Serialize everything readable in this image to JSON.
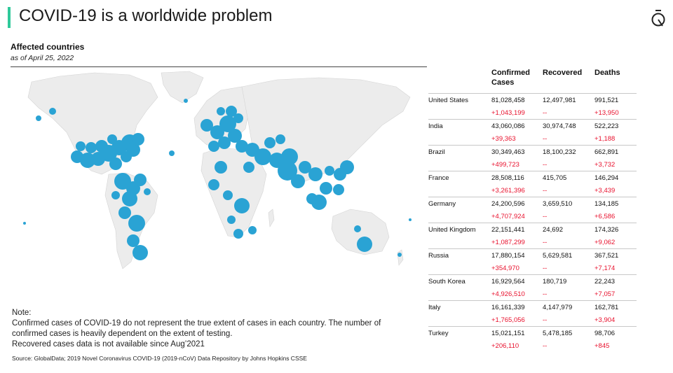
{
  "header": {
    "title": "COVID-19 is a worldwide problem"
  },
  "section": {
    "subtitle": "Affected countries",
    "as_of": "as of April 25, 2022"
  },
  "colors": {
    "accent": "#2fc99a",
    "bubble": "#2aa3d4",
    "increase": "#e8112d"
  },
  "table": {
    "columns": [
      "",
      "Confirmed Cases",
      "Recovered",
      "Deaths"
    ],
    "rows": [
      {
        "country": "United States",
        "confirmed": "81,028,458",
        "recovered": "12,497,981",
        "deaths": "991,521",
        "confirmed_change": "+1,043,199",
        "recovered_change": "--",
        "deaths_change": "+13,950"
      },
      {
        "country": "India",
        "confirmed": "43,060,086",
        "recovered": "30,974,748",
        "deaths": "522,223",
        "confirmed_change": "+39,363",
        "recovered_change": "--",
        "deaths_change": "+1,188"
      },
      {
        "country": "Brazil",
        "confirmed": "30,349,463",
        "recovered": "18,100,232",
        "deaths": "662,891",
        "confirmed_change": "+499,723",
        "recovered_change": "--",
        "deaths_change": "+3,732"
      },
      {
        "country": "France",
        "confirmed": "28,508,116",
        "recovered": "415,705",
        "deaths": "146,294",
        "confirmed_change": "+3,261,396",
        "recovered_change": "--",
        "deaths_change": "+3,439"
      },
      {
        "country": "Germany",
        "confirmed": "24,200,596",
        "recovered": "3,659,510",
        "deaths": "134,185",
        "confirmed_change": "+4,707,924",
        "recovered_change": "--",
        "deaths_change": "+6,586"
      },
      {
        "country": "United Kingdom",
        "confirmed": "22,151,441",
        "recovered": "24,692",
        "deaths": "174,326",
        "confirmed_change": "+1,087,299",
        "recovered_change": "--",
        "deaths_change": "+9,062"
      },
      {
        "country": "Russia",
        "confirmed": "17,880,154",
        "recovered": "5,629,581",
        "deaths": "367,521",
        "confirmed_change": "+354,970",
        "recovered_change": "--",
        "deaths_change": "+7,174"
      },
      {
        "country": "South Korea",
        "confirmed": "16,929,564",
        "recovered": "180,719",
        "deaths": "22,243",
        "confirmed_change": "+4,926,510",
        "recovered_change": "--",
        "deaths_change": "+7,057"
      },
      {
        "country": "Italy",
        "confirmed": "16,161,339",
        "recovered": "4,147,979",
        "deaths": "162,781",
        "confirmed_change": "+1,765,056",
        "recovered_change": "--",
        "deaths_change": "+3,904"
      },
      {
        "country": "Turkey",
        "confirmed": "15,021,151",
        "recovered": "5,478,185",
        "deaths": "98,706",
        "confirmed_change": "+206,110",
        "recovered_change": "--",
        "deaths_change": "+845"
      }
    ]
  },
  "note": {
    "heading": "Note:",
    "lines": [
      "Confirmed cases of COVID-19 do not represent the true extent of cases in each country. The number of",
      "confirmed cases is heavily dependent on the extent of testing.",
      "Recovered cases data is not available since Aug’2021"
    ]
  },
  "source": "Source: GlobalData; 2019 Novel Coronavirus COVID-19 (2019-nCoV) Data Repository by Johns Hopkins CSSE"
}
